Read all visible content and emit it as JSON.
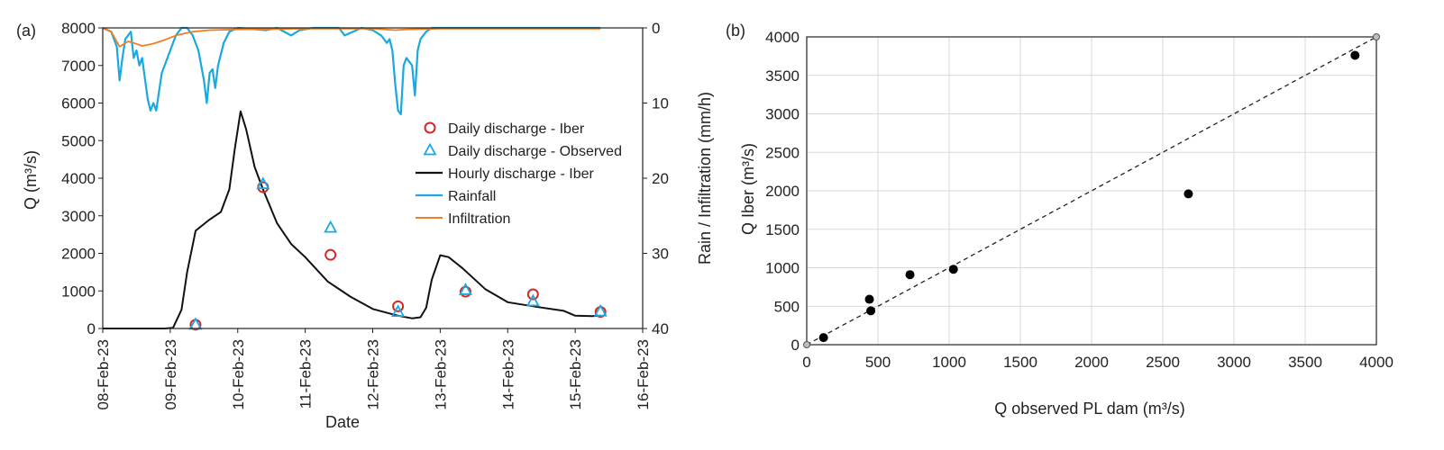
{
  "chart_data": [
    {
      "panel_label": "(a)",
      "type": "line",
      "xlabel": "Date",
      "ylabel": "Q (m³/s)",
      "y2label": "Rain / Infiltration (mm/h)",
      "x_ticks": [
        "08-Feb-23",
        "09-Feb-23",
        "10-Feb-23",
        "11-Feb-23",
        "12-Feb-23",
        "13-Feb-23",
        "14-Feb-23",
        "15-Feb-23",
        "16-Feb-23"
      ],
      "xlim": [
        "08-Feb-23",
        "16-Feb-23"
      ],
      "ylim": [
        0,
        8000
      ],
      "y_ticks": [
        0,
        1000,
        2000,
        3000,
        4000,
        5000,
        6000,
        7000,
        8000
      ],
      "y2lim_inverted": [
        0,
        40
      ],
      "y2_ticks": [
        0,
        10,
        20,
        30,
        40
      ],
      "grid": false,
      "legend_position": "right",
      "colors": {
        "iber": "#d62728",
        "observed": "#19a9e0",
        "hourly": "#111111",
        "rainfall": "#19a9e0",
        "infiltration": "#f07f24"
      },
      "series": [
        {
          "name": "Daily discharge - Iber",
          "marker": "circle",
          "axis": "left",
          "points": [
            [
              "09-Feb-23 09:00",
              100
            ],
            [
              "10-Feb-23 09:00",
              3760
            ],
            [
              "11-Feb-23 09:00",
              1960
            ],
            [
              "12-Feb-23 09:00",
              590
            ],
            [
              "13-Feb-23 09:00",
              980
            ],
            [
              "14-Feb-23 09:00",
              910
            ],
            [
              "15-Feb-23 09:00",
              440
            ]
          ]
        },
        {
          "name": "Daily discharge - Observed",
          "marker": "triangle",
          "axis": "left",
          "points": [
            [
              "09-Feb-23 09:00",
              100
            ],
            [
              "10-Feb-23 09:00",
              3840
            ],
            [
              "11-Feb-23 09:00",
              2680
            ],
            [
              "12-Feb-23 09:00",
              440
            ],
            [
              "13-Feb-23 09:00",
              1020
            ],
            [
              "14-Feb-23 09:00",
              720
            ],
            [
              "15-Feb-23 09:00",
              450
            ]
          ]
        },
        {
          "name": "Hourly discharge - Iber",
          "axis": "left",
          "points": [
            [
              "08-Feb-23 00:00",
              0
            ],
            [
              "08-Feb-23 12:00",
              0
            ],
            [
              "08-Feb-23 22:00",
              0
            ],
            [
              "09-Feb-23 01:00",
              20
            ],
            [
              "09-Feb-23 04:00",
              500
            ],
            [
              "09-Feb-23 06:00",
              1500
            ],
            [
              "09-Feb-23 09:00",
              2600
            ],
            [
              "09-Feb-23 14:00",
              2900
            ],
            [
              "09-Feb-23 18:00",
              3100
            ],
            [
              "09-Feb-23 21:00",
              3700
            ],
            [
              "09-Feb-23 23:00",
              4800
            ],
            [
              "10-Feb-23 01:00",
              5780
            ],
            [
              "10-Feb-23 03:00",
              5300
            ],
            [
              "10-Feb-23 06:00",
              4300
            ],
            [
              "10-Feb-23 09:00",
              3700
            ],
            [
              "10-Feb-23 14:00",
              2800
            ],
            [
              "10-Feb-23 19:00",
              2250
            ],
            [
              "11-Feb-23 00:00",
              1900
            ],
            [
              "11-Feb-23 08:00",
              1250
            ],
            [
              "11-Feb-23 16:00",
              850
            ],
            [
              "12-Feb-23 00:00",
              520
            ],
            [
              "12-Feb-23 09:00",
              340
            ],
            [
              "12-Feb-23 14:00",
              270
            ],
            [
              "12-Feb-23 17:00",
              300
            ],
            [
              "12-Feb-23 19:00",
              550
            ],
            [
              "12-Feb-23 21:00",
              1300
            ],
            [
              "13-Feb-23 00:00",
              1950
            ],
            [
              "13-Feb-23 03:00",
              1900
            ],
            [
              "13-Feb-23 08:00",
              1600
            ],
            [
              "13-Feb-23 16:00",
              1050
            ],
            [
              "14-Feb-23 00:00",
              700
            ],
            [
              "14-Feb-23 10:00",
              580
            ],
            [
              "14-Feb-23 20:00",
              470
            ],
            [
              "15-Feb-23 00:00",
              340
            ],
            [
              "15-Feb-23 06:00",
              330
            ],
            [
              "15-Feb-23 09:00",
              340
            ]
          ]
        },
        {
          "name": "Rainfall",
          "axis": "right",
          "points": [
            [
              "08-Feb-23 00:00",
              0
            ],
            [
              "08-Feb-23 03:00",
              0.5
            ],
            [
              "08-Feb-23 05:00",
              2.5
            ],
            [
              "08-Feb-23 06:00",
              7
            ],
            [
              "08-Feb-23 07:00",
              4
            ],
            [
              "08-Feb-23 08:00",
              1.5
            ],
            [
              "08-Feb-23 10:00",
              0.5
            ],
            [
              "08-Feb-23 11:00",
              4
            ],
            [
              "08-Feb-23 12:00",
              3
            ],
            [
              "08-Feb-23 13:00",
              5
            ],
            [
              "08-Feb-23 14:00",
              4
            ],
            [
              "08-Feb-23 16:00",
              9.5
            ],
            [
              "08-Feb-23 17:00",
              11
            ],
            [
              "08-Feb-23 18:00",
              10
            ],
            [
              "08-Feb-23 19:00",
              11
            ],
            [
              "08-Feb-23 21:00",
              6
            ],
            [
              "09-Feb-23 00:00",
              3
            ],
            [
              "09-Feb-23 02:00",
              1
            ],
            [
              "09-Feb-23 04:00",
              0
            ],
            [
              "09-Feb-23 06:00",
              0
            ],
            [
              "09-Feb-23 08:00",
              1
            ],
            [
              "09-Feb-23 10:00",
              3
            ],
            [
              "09-Feb-23 12:00",
              7
            ],
            [
              "09-Feb-23 13:00",
              10
            ],
            [
              "09-Feb-23 14:00",
              6
            ],
            [
              "09-Feb-23 15:00",
              5.5
            ],
            [
              "09-Feb-23 16:00",
              8
            ],
            [
              "09-Feb-23 17:00",
              5
            ],
            [
              "09-Feb-23 19:00",
              2
            ],
            [
              "09-Feb-23 21:00",
              0.5
            ],
            [
              "10-Feb-23 00:00",
              0
            ],
            [
              "10-Feb-23 10:00",
              0.3
            ],
            [
              "10-Feb-23 14:00",
              0
            ],
            [
              "10-Feb-23 19:00",
              1
            ],
            [
              "10-Feb-23 22:00",
              0.3
            ],
            [
              "11-Feb-23 03:00",
              0
            ],
            [
              "11-Feb-23 12:00",
              0
            ],
            [
              "11-Feb-23 14:00",
              1
            ],
            [
              "11-Feb-23 17:00",
              0.5
            ],
            [
              "11-Feb-23 20:00",
              0
            ],
            [
              "12-Feb-23 00:00",
              0.3
            ],
            [
              "12-Feb-23 03:00",
              1
            ],
            [
              "12-Feb-23 05:00",
              2
            ],
            [
              "12-Feb-23 06:00",
              1.5
            ],
            [
              "12-Feb-23 07:00",
              3
            ],
            [
              "12-Feb-23 08:00",
              7.5
            ],
            [
              "12-Feb-23 09:00",
              11
            ],
            [
              "12-Feb-23 10:00",
              11.5
            ],
            [
              "12-Feb-23 11:00",
              5
            ],
            [
              "12-Feb-23 12:00",
              4
            ],
            [
              "12-Feb-23 13:00",
              4.5
            ],
            [
              "12-Feb-23 14:00",
              5
            ],
            [
              "12-Feb-23 15:00",
              9
            ],
            [
              "12-Feb-23 16:00",
              3
            ],
            [
              "12-Feb-23 17:00",
              1.5
            ],
            [
              "12-Feb-23 19:00",
              0.5
            ],
            [
              "12-Feb-23 21:00",
              0
            ],
            [
              "15-Feb-23 09:00",
              0
            ]
          ]
        },
        {
          "name": "Infiltration",
          "axis": "right",
          "points": [
            [
              "08-Feb-23 00:00",
              0
            ],
            [
              "08-Feb-23 03:00",
              0.5
            ],
            [
              "08-Feb-23 06:00",
              2.5
            ],
            [
              "08-Feb-23 09:00",
              1.8
            ],
            [
              "08-Feb-23 11:00",
              2
            ],
            [
              "08-Feb-23 14:00",
              2.4
            ],
            [
              "08-Feb-23 18:00",
              2.1
            ],
            [
              "08-Feb-23 22:00",
              1.6
            ],
            [
              "09-Feb-23 02:00",
              1
            ],
            [
              "09-Feb-23 08:00",
              0.5
            ],
            [
              "09-Feb-23 14:00",
              0.3
            ],
            [
              "10-Feb-23 00:00",
              0.2
            ],
            [
              "11-Feb-23 00:00",
              0.1
            ],
            [
              "12-Feb-23 00:00",
              0.1
            ],
            [
              "12-Feb-23 08:00",
              0.3
            ],
            [
              "12-Feb-23 12:00",
              0.2
            ],
            [
              "13-Feb-23 00:00",
              0.1
            ],
            [
              "15-Feb-23 09:00",
              0.1
            ]
          ]
        }
      ]
    },
    {
      "panel_label": "(b)",
      "type": "scatter",
      "xlabel": "Q observed PL dam (m³/s)",
      "ylabel": "Q Iber (m³/s)",
      "xlim": [
        0,
        4000
      ],
      "ylim": [
        0,
        4000
      ],
      "x_ticks": [
        0,
        500,
        1000,
        1500,
        2000,
        2500,
        3000,
        3500,
        4000
      ],
      "y_ticks": [
        0,
        500,
        1000,
        1500,
        2000,
        2500,
        3000,
        3500,
        4000
      ],
      "grid": true,
      "reference_line": {
        "style": "dashed",
        "from": [
          0,
          0
        ],
        "to": [
          4000,
          4000
        ]
      },
      "points": [
        [
          118,
          92
        ],
        [
          440,
          590
        ],
        [
          450,
          440
        ],
        [
          725,
          910
        ],
        [
          1030,
          980
        ],
        [
          2680,
          1960
        ],
        [
          3850,
          3760
        ]
      ]
    }
  ]
}
